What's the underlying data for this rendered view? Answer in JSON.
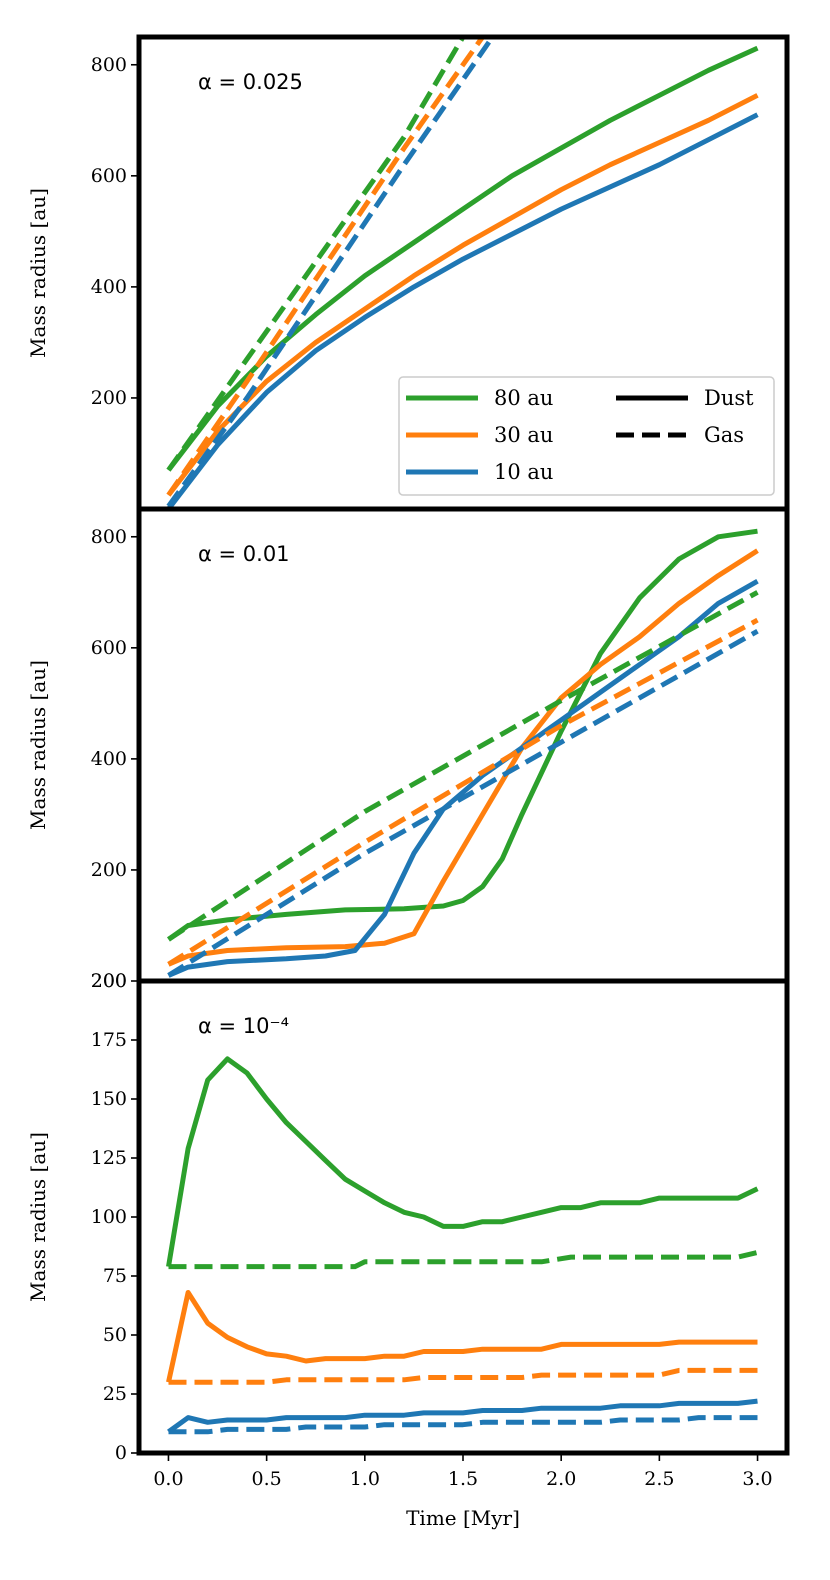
{
  "colors": {
    "80 au": "#2ca02c",
    "30 au": "#ff7f0e",
    "10 au": "#1f77b4",
    "black": "#000000"
  },
  "chart_data": [
    {
      "type": "line",
      "annotation": "α = 0.025",
      "ylabel": "Mass radius [au]",
      "xlim": [
        -0.15,
        3.15
      ],
      "ylim": [
        0,
        850
      ],
      "yticks": [
        200,
        400,
        600,
        800
      ],
      "legend": {
        "placement": "lower-right",
        "series_entries": [
          "80 au",
          "30 au",
          "10 au"
        ],
        "style_entries": [
          {
            "label": "Dust",
            "dash": false
          },
          {
            "label": "Gas",
            "dash": true
          }
        ]
      },
      "series": [
        {
          "name": "80 au",
          "kind": "Dust",
          "color": "#2ca02c",
          "x": [
            0,
            0.25,
            0.5,
            0.75,
            1.0,
            1.25,
            1.5,
            1.75,
            2.0,
            2.25,
            2.5,
            2.75,
            3.0
          ],
          "y": [
            70,
            185,
            275,
            350,
            420,
            480,
            540,
            600,
            650,
            700,
            745,
            790,
            830
          ]
        },
        {
          "name": "30 au",
          "kind": "Dust",
          "color": "#ff7f0e",
          "x": [
            0,
            0.25,
            0.5,
            0.75,
            1.0,
            1.25,
            1.5,
            1.75,
            2.0,
            2.25,
            2.5,
            2.75,
            3.0
          ],
          "y": [
            25,
            140,
            230,
            300,
            360,
            420,
            475,
            525,
            575,
            620,
            660,
            700,
            745
          ]
        },
        {
          "name": "10 au",
          "kind": "Dust",
          "color": "#1f77b4",
          "x": [
            0,
            0.25,
            0.5,
            0.75,
            1.0,
            1.25,
            1.5,
            1.75,
            2.0,
            2.25,
            2.5,
            2.75,
            3.0
          ],
          "y": [
            0,
            115,
            210,
            285,
            345,
            400,
            450,
            495,
            540,
            580,
            620,
            665,
            710
          ]
        },
        {
          "name": "80 au",
          "kind": "Gas",
          "color": "#2ca02c",
          "x": [
            0,
            0.4,
            0.8,
            1.2,
            1.5
          ],
          "y": [
            70,
            270,
            470,
            670,
            850
          ]
        },
        {
          "name": "30 au",
          "kind": "Gas",
          "color": "#ff7f0e",
          "x": [
            0,
            0.4,
            0.8,
            1.2,
            1.6
          ],
          "y": [
            25,
            230,
            440,
            650,
            850
          ]
        },
        {
          "name": "10 au",
          "kind": "Gas",
          "color": "#1f77b4",
          "x": [
            0,
            0.4,
            0.8,
            1.2,
            1.65
          ],
          "y": [
            5,
            200,
            410,
            620,
            850
          ]
        }
      ]
    },
    {
      "type": "line",
      "annotation": "α = 0.01",
      "ylabel": "Mass radius [au]",
      "xlim": [
        -0.15,
        3.15
      ],
      "ylim": [
        0,
        850
      ],
      "yticks": [
        200,
        400,
        600,
        800
      ],
      "extra_ytick": "200",
      "series": [
        {
          "name": "80 au",
          "kind": "Dust",
          "color": "#2ca02c",
          "x": [
            0,
            0.1,
            0.3,
            0.6,
            0.9,
            1.2,
            1.4,
            1.5,
            1.6,
            1.7,
            1.8,
            2.0,
            2.2,
            2.4,
            2.6,
            2.8,
            3.0
          ],
          "y": [
            75,
            100,
            110,
            120,
            128,
            130,
            135,
            145,
            170,
            220,
            300,
            450,
            590,
            690,
            760,
            800,
            810
          ]
        },
        {
          "name": "30 au",
          "kind": "Dust",
          "color": "#ff7f0e",
          "x": [
            0,
            0.1,
            0.3,
            0.6,
            0.9,
            1.1,
            1.25,
            1.4,
            1.6,
            1.8,
            2.0,
            2.2,
            2.4,
            2.6,
            2.8,
            3.0
          ],
          "y": [
            30,
            45,
            55,
            60,
            62,
            68,
            85,
            180,
            300,
            420,
            510,
            570,
            620,
            680,
            730,
            775
          ]
        },
        {
          "name": "10 au",
          "kind": "Dust",
          "color": "#1f77b4",
          "x": [
            0,
            0.1,
            0.3,
            0.6,
            0.8,
            0.95,
            1.1,
            1.25,
            1.4,
            1.6,
            1.8,
            2.0,
            2.2,
            2.4,
            2.6,
            2.8,
            3.0
          ],
          "y": [
            10,
            25,
            35,
            40,
            45,
            55,
            120,
            230,
            310,
            370,
            420,
            470,
            520,
            570,
            620,
            680,
            720
          ]
        },
        {
          "name": "80 au",
          "kind": "Gas",
          "color": "#2ca02c",
          "x": [
            0,
            1.0,
            2.0,
            3.0
          ],
          "y": [
            75,
            305,
            505,
            700
          ]
        },
        {
          "name": "30 au",
          "kind": "Gas",
          "color": "#ff7f0e",
          "x": [
            0,
            1.0,
            2.0,
            3.0
          ],
          "y": [
            30,
            250,
            460,
            650
          ]
        },
        {
          "name": "10 au",
          "kind": "Gas",
          "color": "#1f77b4",
          "x": [
            0,
            1.0,
            2.0,
            3.0
          ],
          "y": [
            10,
            230,
            430,
            630
          ]
        }
      ]
    },
    {
      "type": "line",
      "annotation": "α = 10⁻⁴",
      "ylabel": "Mass radius [au]",
      "xlabel": "Time [Myr]",
      "xlim": [
        -0.15,
        3.15
      ],
      "ylim": [
        0,
        200
      ],
      "yticks": [
        0,
        25,
        50,
        75,
        100,
        125,
        150,
        175,
        200
      ],
      "xticks": [
        0.0,
        0.5,
        1.0,
        1.5,
        2.0,
        2.5,
        3.0
      ],
      "xtick_labels": [
        "0.0",
        "0.5",
        "1.0",
        "1.5",
        "2.0",
        "2.5",
        "3.0"
      ],
      "series": [
        {
          "name": "80 au",
          "kind": "Dust",
          "color": "#2ca02c",
          "x": [
            0,
            0.1,
            0.2,
            0.3,
            0.4,
            0.5,
            0.6,
            0.7,
            0.8,
            0.9,
            1.0,
            1.1,
            1.2,
            1.3,
            1.4,
            1.5,
            1.6,
            1.7,
            1.8,
            1.9,
            2.0,
            2.1,
            2.2,
            2.3,
            2.4,
            2.5,
            2.6,
            2.7,
            2.8,
            2.9,
            3.0
          ],
          "y": [
            79,
            129,
            158,
            167,
            161,
            150,
            140,
            132,
            124,
            116,
            111,
            106,
            102,
            100,
            96,
            96,
            98,
            98,
            100,
            102,
            104,
            104,
            106,
            106,
            106,
            108,
            108,
            108,
            108,
            108,
            112
          ]
        },
        {
          "name": "80 au",
          "kind": "Gas",
          "color": "#2ca02c",
          "x": [
            0,
            0.5,
            0.95,
            1.0,
            1.9,
            2.05,
            2.9,
            3.0
          ],
          "y": [
            79,
            79,
            79,
            81,
            81,
            83,
            83,
            85
          ]
        },
        {
          "name": "30 au",
          "kind": "Dust",
          "color": "#ff7f0e",
          "x": [
            0,
            0.1,
            0.2,
            0.3,
            0.4,
            0.5,
            0.6,
            0.7,
            0.8,
            1.0,
            1.1,
            1.2,
            1.3,
            1.4,
            1.5,
            1.6,
            1.7,
            1.9,
            2.0,
            2.1,
            2.5,
            2.6,
            3.0
          ],
          "y": [
            30,
            68,
            55,
            49,
            45,
            42,
            41,
            39,
            40,
            40,
            41,
            41,
            43,
            43,
            43,
            44,
            44,
            44,
            46,
            46,
            46,
            47,
            47
          ]
        },
        {
          "name": "30 au",
          "kind": "Gas",
          "color": "#ff7f0e",
          "x": [
            0,
            0.5,
            0.6,
            1.2,
            1.3,
            1.8,
            1.9,
            2.5,
            2.6,
            3.0
          ],
          "y": [
            30,
            30,
            31,
            31,
            32,
            32,
            33,
            33,
            35,
            35
          ]
        },
        {
          "name": "10 au",
          "kind": "Dust",
          "color": "#1f77b4",
          "x": [
            0,
            0.1,
            0.2,
            0.3,
            0.5,
            0.6,
            0.9,
            1.0,
            1.2,
            1.3,
            1.5,
            1.6,
            1.8,
            1.9,
            2.2,
            2.3,
            2.5,
            2.6,
            2.9,
            3.0
          ],
          "y": [
            9,
            15,
            13,
            14,
            14,
            15,
            15,
            16,
            16,
            17,
            17,
            18,
            18,
            19,
            19,
            20,
            20,
            21,
            21,
            22
          ]
        },
        {
          "name": "10 au",
          "kind": "Gas",
          "color": "#1f77b4",
          "x": [
            0,
            0.2,
            0.3,
            0.6,
            0.7,
            1.0,
            1.1,
            1.5,
            1.6,
            1.9,
            2.0,
            2.2,
            2.3,
            2.6,
            2.7,
            3.0
          ],
          "y": [
            9,
            9,
            10,
            10,
            11,
            11,
            12,
            12,
            13,
            13,
            13,
            13,
            14,
            14,
            15,
            15
          ]
        }
      ]
    }
  ]
}
